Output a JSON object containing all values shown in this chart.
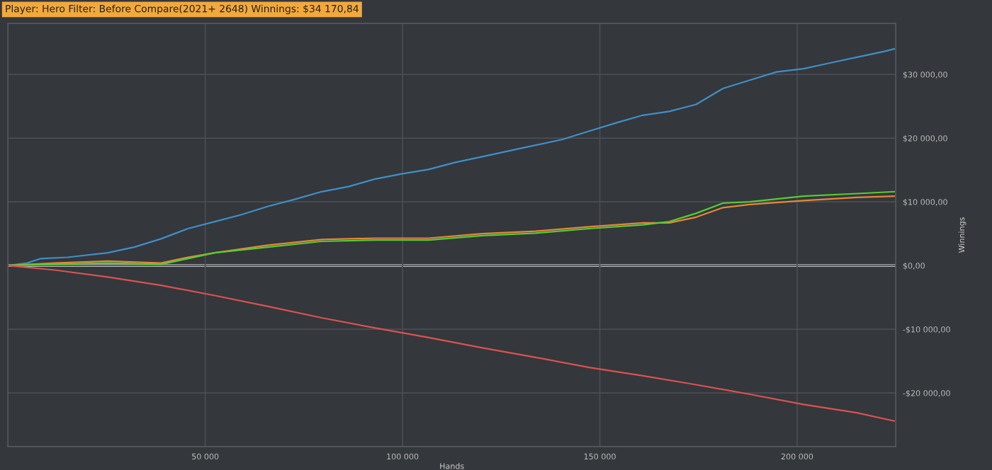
{
  "chart_data": {
    "type": "line",
    "title": "Player: Hero Filter: Before Compare(2021+ 2648) Winnings: $34 170,84",
    "xlabel": "Hands",
    "ylabel": "Winnings",
    "xlim": [
      0,
      225000
    ],
    "ylim": [
      -28400,
      38000
    ],
    "xticks": [
      {
        "value": 50000,
        "label": "50 000"
      },
      {
        "value": 100000,
        "label": "100 000"
      },
      {
        "value": 150000,
        "label": "150 000"
      },
      {
        "value": 200000,
        "label": "200 000"
      }
    ],
    "yticks": [
      {
        "value": -20000,
        "label": "-$20 000,00"
      },
      {
        "value": -10000,
        "label": "-$10 000,00"
      },
      {
        "value": 0,
        "label": "$0,00"
      },
      {
        "value": 10000,
        "label": "$10 000,00"
      },
      {
        "value": 20000,
        "label": "$20 000,00"
      },
      {
        "value": 30000,
        "label": "$30 000,00"
      }
    ],
    "grid": true,
    "marker": "none",
    "line_style": "solid",
    "ref_lines": [
      {
        "axis": "y",
        "value": 0,
        "label": null,
        "color": "#e8e8e8"
      }
    ],
    "series": [
      {
        "color": "#3f8fc6",
        "x": [
          0,
          4900,
          8300,
          15100,
          25300,
          32000,
          38800,
          45600,
          52400,
          59200,
          65900,
          72700,
          79500,
          86300,
          93100,
          99800,
          106600,
          113400,
          120200,
          127000,
          133700,
          140500,
          147300,
          154100,
          160900,
          167600,
          174400,
          181200,
          188000,
          194800,
          201600,
          208300,
          215100,
          221900,
          224600
        ],
        "values": [
          0,
          400,
          1100,
          1300,
          2000,
          2900,
          4200,
          5800,
          6900,
          8000,
          9300,
          10400,
          11600,
          12400,
          13600,
          14400,
          15100,
          16200,
          17100,
          18000,
          18900,
          19800,
          21100,
          22400,
          23600,
          24200,
          25300,
          27800,
          29100,
          30400,
          30900,
          31800,
          32700,
          33600,
          34000
        ]
      },
      {
        "color": "#e8853a",
        "x": [
          0,
          11900,
          25300,
          38800,
          45600,
          52400,
          65900,
          79500,
          93100,
          106600,
          120200,
          133700,
          147300,
          160900,
          167600,
          174400,
          181200,
          188000,
          201600,
          215100,
          224600
        ],
        "values": [
          0,
          400,
          700,
          400,
          1300,
          2000,
          3200,
          4100,
          4300,
          4300,
          5000,
          5400,
          6100,
          6700,
          6700,
          7600,
          9100,
          9600,
          10200,
          10700,
          10900
        ]
      },
      {
        "color": "#55cc33",
        "x": [
          0,
          11900,
          25300,
          38800,
          45600,
          52400,
          65900,
          79500,
          93100,
          106600,
          120200,
          133700,
          147300,
          160900,
          167600,
          174400,
          181200,
          188000,
          201600,
          215100,
          224600
        ],
        "values": [
          0,
          200,
          400,
          200,
          1100,
          2000,
          2900,
          3800,
          4000,
          4000,
          4700,
          5100,
          5800,
          6400,
          6900,
          8200,
          9800,
          10000,
          10900,
          11300,
          11600
        ]
      },
      {
        "color": "#d9534f",
        "x": [
          0,
          11900,
          25300,
          38800,
          52400,
          65900,
          79500,
          93100,
          106600,
          120200,
          133700,
          147300,
          160900,
          174400,
          188000,
          201600,
          215100,
          224600
        ],
        "values": [
          0,
          -700,
          -1800,
          -3100,
          -4700,
          -6400,
          -8200,
          -9800,
          -11300,
          -12900,
          -14400,
          -16000,
          -17300,
          -18700,
          -20200,
          -21800,
          -23100,
          -24400
        ]
      }
    ]
  }
}
